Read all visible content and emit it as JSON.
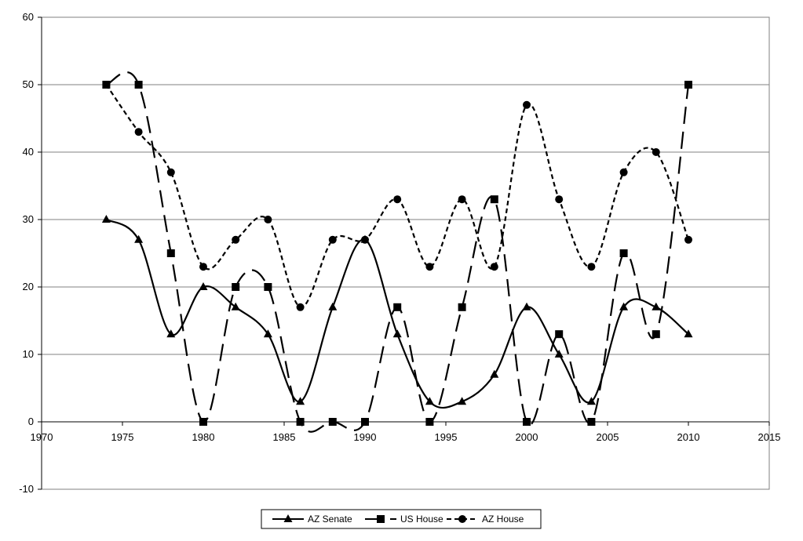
{
  "chart_data": {
    "type": "line",
    "title": "",
    "xlabel": "",
    "ylabel": "",
    "xlim": [
      1970,
      2015
    ],
    "ylim": [
      -10,
      60
    ],
    "x_ticks": [
      1970,
      1975,
      1980,
      1985,
      1990,
      1995,
      2000,
      2005,
      2010,
      2015
    ],
    "y_ticks": [
      -10,
      0,
      10,
      20,
      30,
      40,
      50,
      60
    ],
    "grid": "horizontal",
    "legend_position": "bottom",
    "smoothed": true,
    "series": [
      {
        "name": "AZ Senate",
        "marker": "triangle",
        "dash": "solid",
        "color": "#000000",
        "x": [
          1974,
          1976,
          1978,
          1980,
          1982,
          1984,
          1986,
          1988,
          1990,
          1992,
          1994,
          1996,
          1998,
          2000,
          2002,
          2004,
          2006,
          2008,
          2010
        ],
        "y": [
          30,
          27,
          13,
          20,
          17,
          13,
          3,
          17,
          27,
          13,
          3,
          3,
          7,
          17,
          10,
          3,
          17,
          17,
          13
        ]
      },
      {
        "name": "US House",
        "marker": "square",
        "dash": "long-dash",
        "color": "#000000",
        "x": [
          1974,
          1976,
          1978,
          1980,
          1982,
          1984,
          1986,
          1988,
          1990,
          1992,
          1994,
          1996,
          1998,
          2000,
          2002,
          2004,
          2006,
          2008,
          2010
        ],
        "y": [
          50,
          50,
          25,
          0,
          20,
          20,
          0,
          0,
          0,
          17,
          0,
          17,
          33,
          0,
          13,
          0,
          25,
          13,
          50
        ]
      },
      {
        "name": "AZ House",
        "marker": "circle",
        "dash": "short-dash",
        "color": "#000000",
        "x": [
          1974,
          1976,
          1978,
          1980,
          1982,
          1984,
          1986,
          1988,
          1990,
          1992,
          1994,
          1996,
          1998,
          2000,
          2002,
          2004,
          2006,
          2008,
          2010
        ],
        "y": [
          50,
          43,
          37,
          23,
          27,
          30,
          17,
          27,
          27,
          33,
          23,
          33,
          23,
          47,
          33,
          23,
          37,
          40,
          27
        ]
      }
    ]
  }
}
